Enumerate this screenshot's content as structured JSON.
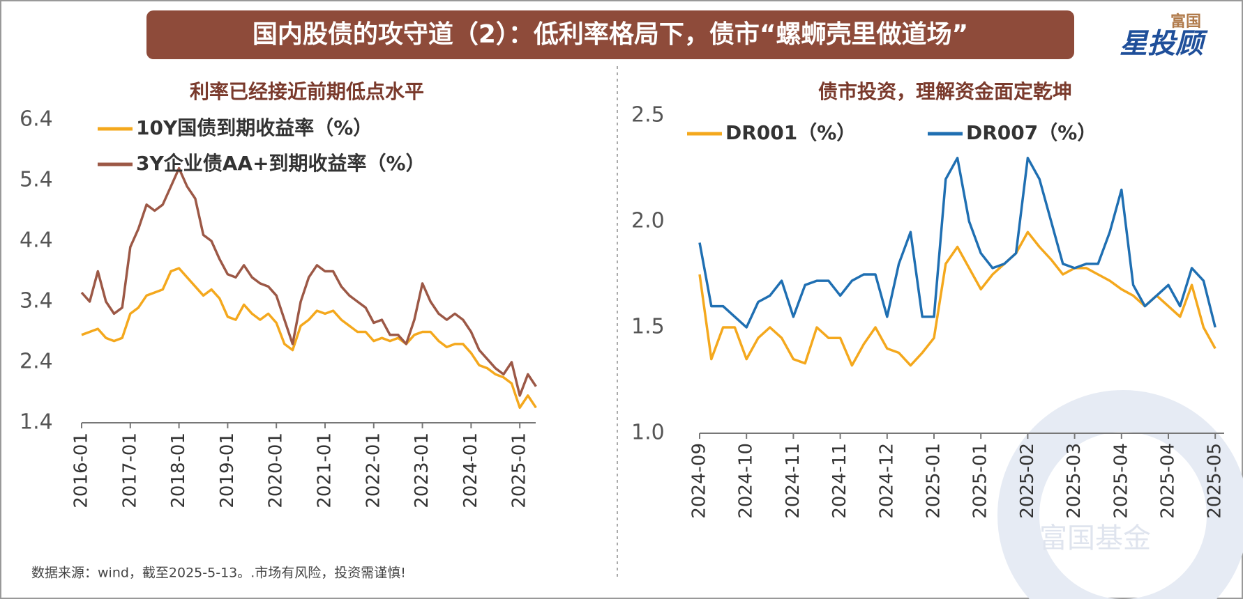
{
  "header": {
    "title": "国内股债的攻守道（2）：低利率格局下，债市“螺蛳壳里做道场”",
    "logo_top": "富国",
    "logo": "星投顾"
  },
  "footnote": "数据来源：wind，截至2025-5-13。.市场有风险，投资需谨慎!",
  "watermark": "富国基金",
  "chart_data": [
    {
      "type": "line",
      "title": "利率已经接近前期低点水平",
      "x": [
        "2016-01",
        "2016-03",
        "2016-05",
        "2016-07",
        "2016-09",
        "2016-11",
        "2017-01",
        "2017-03",
        "2017-05",
        "2017-07",
        "2017-09",
        "2017-11",
        "2018-01",
        "2018-03",
        "2018-05",
        "2018-07",
        "2018-09",
        "2018-11",
        "2019-01",
        "2019-03",
        "2019-05",
        "2019-07",
        "2019-09",
        "2019-11",
        "2020-01",
        "2020-03",
        "2020-05",
        "2020-07",
        "2020-09",
        "2020-11",
        "2021-01",
        "2021-03",
        "2021-05",
        "2021-07",
        "2021-09",
        "2021-11",
        "2022-01",
        "2022-03",
        "2022-05",
        "2022-07",
        "2022-09",
        "2022-11",
        "2023-01",
        "2023-03",
        "2023-05",
        "2023-07",
        "2023-09",
        "2023-11",
        "2024-01",
        "2024-03",
        "2024-05",
        "2024-07",
        "2024-09",
        "2024-11",
        "2025-01",
        "2025-03",
        "2025-05"
      ],
      "xticks": [
        "2016-01",
        "2017-01",
        "2018-01",
        "2019-01",
        "2020-01",
        "2021-01",
        "2022-01",
        "2023-01",
        "2024-01",
        "2025-01"
      ],
      "ylim": [
        1.4,
        6.4
      ],
      "yticks": [
        6.4,
        5.4,
        4.4,
        3.4,
        2.4,
        1.4
      ],
      "series": [
        {
          "name": "10Y国债到期收益率（%）",
          "color": "#f4a81d",
          "values": [
            2.85,
            2.9,
            2.95,
            2.8,
            2.75,
            2.8,
            3.2,
            3.3,
            3.5,
            3.55,
            3.6,
            3.9,
            3.95,
            3.8,
            3.65,
            3.5,
            3.6,
            3.45,
            3.15,
            3.1,
            3.35,
            3.2,
            3.1,
            3.2,
            3.05,
            2.7,
            2.6,
            3.0,
            3.1,
            3.25,
            3.2,
            3.25,
            3.1,
            3.0,
            2.9,
            2.9,
            2.75,
            2.8,
            2.75,
            2.8,
            2.7,
            2.85,
            2.9,
            2.9,
            2.75,
            2.65,
            2.7,
            2.7,
            2.55,
            2.35,
            2.3,
            2.2,
            2.15,
            2.05,
            1.65,
            1.85,
            1.65
          ]
        },
        {
          "name": "3Y企业债AA+到期收益率（%）",
          "color": "#9c5846",
          "values": [
            3.55,
            3.4,
            3.9,
            3.4,
            3.2,
            3.3,
            4.3,
            4.6,
            5.0,
            4.9,
            5.0,
            5.3,
            5.6,
            5.3,
            5.1,
            4.5,
            4.4,
            4.1,
            3.85,
            3.8,
            4.0,
            3.8,
            3.7,
            3.65,
            3.5,
            3.1,
            2.7,
            3.4,
            3.8,
            4.0,
            3.9,
            3.9,
            3.65,
            3.5,
            3.4,
            3.3,
            3.05,
            3.1,
            2.85,
            2.85,
            2.7,
            3.1,
            3.7,
            3.4,
            3.2,
            3.1,
            3.2,
            3.1,
            2.9,
            2.6,
            2.45,
            2.3,
            2.2,
            2.4,
            1.85,
            2.2,
            2.0
          ]
        }
      ]
    },
    {
      "type": "line",
      "title": "债市投资，理解资金面定乾坤",
      "x": [
        "2024-09",
        null,
        null,
        null,
        "2024-10",
        null,
        null,
        null,
        "2024-11",
        null,
        null,
        null,
        "2024-11",
        null,
        null,
        null,
        "2024-12",
        null,
        null,
        null,
        "2025-01",
        null,
        null,
        null,
        "2025-01",
        null,
        null,
        null,
        "2025-02",
        null,
        null,
        null,
        "2025-03",
        null,
        null,
        null,
        "2025-04",
        null,
        null,
        null,
        "2025-04",
        null,
        null,
        null,
        "2025-05"
      ],
      "ylim": [
        1.0,
        2.5
      ],
      "yticks": [
        {
          "value": 1,
          "label": "1.0"
        },
        1.5,
        {
          "value": 2,
          "label": "2.0"
        },
        2.5
      ],
      "series": [
        {
          "name": "DR001（%）",
          "color": "#f4a81d",
          "values": [
            1.75,
            1.35,
            1.5,
            1.5,
            1.35,
            1.45,
            1.5,
            1.45,
            1.35,
            1.33,
            1.5,
            1.45,
            1.45,
            1.32,
            1.42,
            1.5,
            1.4,
            1.38,
            1.32,
            1.38,
            1.45,
            1.8,
            1.88,
            1.78,
            1.68,
            1.75,
            1.8,
            1.85,
            1.95,
            1.88,
            1.82,
            1.75,
            1.78,
            1.78,
            1.75,
            1.72,
            1.68,
            1.65,
            1.6,
            1.65,
            1.6,
            1.55,
            1.7,
            1.5,
            1.4
          ]
        },
        {
          "name": "DR007（%）",
          "color": "#1f6fb2",
          "values": [
            1.9,
            1.6,
            1.6,
            1.55,
            1.5,
            1.62,
            1.65,
            1.72,
            1.55,
            1.7,
            1.72,
            1.72,
            1.65,
            1.72,
            1.75,
            1.75,
            1.55,
            1.8,
            1.95,
            1.55,
            1.55,
            2.2,
            2.3,
            2.0,
            1.85,
            1.78,
            1.8,
            1.85,
            2.3,
            2.2,
            2.0,
            1.8,
            1.78,
            1.8,
            1.8,
            1.95,
            2.15,
            1.7,
            1.6,
            1.65,
            1.7,
            1.6,
            1.78,
            1.72,
            1.5
          ]
        }
      ]
    }
  ]
}
